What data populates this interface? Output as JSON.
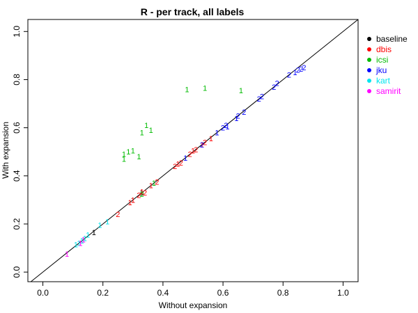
{
  "chart_data": {
    "type": "scatter",
    "title": "R - per track, all labels",
    "xlabel": "Without expansion",
    "ylabel": "With expansion",
    "xlim": [
      -0.05,
      1.05
    ],
    "ylim": [
      -0.04,
      1.05
    ],
    "x_ticks": [
      "0.0",
      "0.2",
      "0.4",
      "0.6",
      "0.8",
      "1.0"
    ],
    "y_ticks": [
      "0.0",
      "0.2",
      "0.4",
      "0.6",
      "0.8",
      "1.0"
    ],
    "reference_line": "y = x",
    "legend_position": "right",
    "series": [
      {
        "name": "baseline",
        "color": "#000000",
        "points": [
          {
            "x": 0.17,
            "y": 0.165,
            "label": "1"
          },
          {
            "x": 0.3,
            "y": 0.3,
            "label": "1"
          },
          {
            "x": 0.33,
            "y": 0.33,
            "label": "1"
          }
        ]
      },
      {
        "name": "dbis",
        "color": "#ff0000",
        "points": [
          {
            "x": 0.25,
            "y": 0.24,
            "label": "2"
          },
          {
            "x": 0.29,
            "y": 0.29,
            "label": "1"
          },
          {
            "x": 0.3,
            "y": 0.3,
            "label": "1"
          },
          {
            "x": 0.32,
            "y": 0.32,
            "label": "2"
          },
          {
            "x": 0.33,
            "y": 0.335,
            "label": "1"
          },
          {
            "x": 0.34,
            "y": 0.33,
            "label": "2"
          },
          {
            "x": 0.36,
            "y": 0.36,
            "label": "1"
          },
          {
            "x": 0.38,
            "y": 0.375,
            "label": "2"
          },
          {
            "x": 0.44,
            "y": 0.44,
            "label": "2"
          },
          {
            "x": 0.45,
            "y": 0.45,
            "label": "1"
          },
          {
            "x": 0.46,
            "y": 0.455,
            "label": "2"
          },
          {
            "x": 0.49,
            "y": 0.49,
            "label": "2"
          },
          {
            "x": 0.5,
            "y": 0.505,
            "label": "1"
          },
          {
            "x": 0.51,
            "y": 0.51,
            "label": "2"
          },
          {
            "x": 0.53,
            "y": 0.53,
            "label": "1"
          },
          {
            "x": 0.54,
            "y": 0.54,
            "label": "2"
          },
          {
            "x": 0.56,
            "y": 0.555,
            "label": "1"
          }
        ]
      },
      {
        "name": "icsi",
        "color": "#00bb00",
        "points": [
          {
            "x": 0.27,
            "y": 0.47,
            "label": "1"
          },
          {
            "x": 0.27,
            "y": 0.49,
            "label": "1"
          },
          {
            "x": 0.285,
            "y": 0.5,
            "label": "1"
          },
          {
            "x": 0.3,
            "y": 0.505,
            "label": "1"
          },
          {
            "x": 0.32,
            "y": 0.48,
            "label": "1"
          },
          {
            "x": 0.33,
            "y": 0.58,
            "label": "1"
          },
          {
            "x": 0.345,
            "y": 0.61,
            "label": "1"
          },
          {
            "x": 0.36,
            "y": 0.59,
            "label": "1"
          },
          {
            "x": 0.48,
            "y": 0.76,
            "label": "1"
          },
          {
            "x": 0.54,
            "y": 0.765,
            "label": "1"
          },
          {
            "x": 0.66,
            "y": 0.755,
            "label": "1"
          },
          {
            "x": 0.37,
            "y": 0.37,
            "label": "1"
          },
          {
            "x": 0.33,
            "y": 0.325,
            "label": "2"
          }
        ]
      },
      {
        "name": "jku",
        "color": "#0000ff",
        "points": [
          {
            "x": 0.475,
            "y": 0.475,
            "label": "1"
          },
          {
            "x": 0.53,
            "y": 0.53,
            "label": "2"
          },
          {
            "x": 0.58,
            "y": 0.58,
            "label": "1"
          },
          {
            "x": 0.6,
            "y": 0.6,
            "label": "2"
          },
          {
            "x": 0.61,
            "y": 0.61,
            "label": "2"
          },
          {
            "x": 0.615,
            "y": 0.605,
            "label": "1"
          },
          {
            "x": 0.645,
            "y": 0.64,
            "label": "1"
          },
          {
            "x": 0.65,
            "y": 0.65,
            "label": "2"
          },
          {
            "x": 0.67,
            "y": 0.665,
            "label": "2"
          },
          {
            "x": 0.72,
            "y": 0.72,
            "label": "2"
          },
          {
            "x": 0.73,
            "y": 0.73,
            "label": "2"
          },
          {
            "x": 0.77,
            "y": 0.77,
            "label": "2"
          },
          {
            "x": 0.78,
            "y": 0.785,
            "label": "2"
          },
          {
            "x": 0.82,
            "y": 0.82,
            "label": "2"
          },
          {
            "x": 0.84,
            "y": 0.83,
            "label": "1"
          },
          {
            "x": 0.85,
            "y": 0.84,
            "label": "2"
          },
          {
            "x": 0.86,
            "y": 0.845,
            "label": "2"
          },
          {
            "x": 0.87,
            "y": 0.85,
            "label": "2"
          }
        ]
      },
      {
        "name": "kart",
        "color": "#00e5ee",
        "points": [
          {
            "x": 0.11,
            "y": 0.115,
            "label": "1"
          },
          {
            "x": 0.12,
            "y": 0.12,
            "label": "1"
          },
          {
            "x": 0.13,
            "y": 0.13,
            "label": "1"
          },
          {
            "x": 0.14,
            "y": 0.14,
            "label": "1"
          },
          {
            "x": 0.15,
            "y": 0.155,
            "label": "1"
          },
          {
            "x": 0.19,
            "y": 0.195,
            "label": "1"
          },
          {
            "x": 0.215,
            "y": 0.21,
            "label": "1"
          }
        ]
      },
      {
        "name": "samirit",
        "color": "#ff00ff",
        "points": [
          {
            "x": 0.08,
            "y": 0.075,
            "label": "1"
          },
          {
            "x": 0.125,
            "y": 0.12,
            "label": "1"
          },
          {
            "x": 0.135,
            "y": 0.135,
            "label": "1"
          }
        ]
      }
    ]
  }
}
